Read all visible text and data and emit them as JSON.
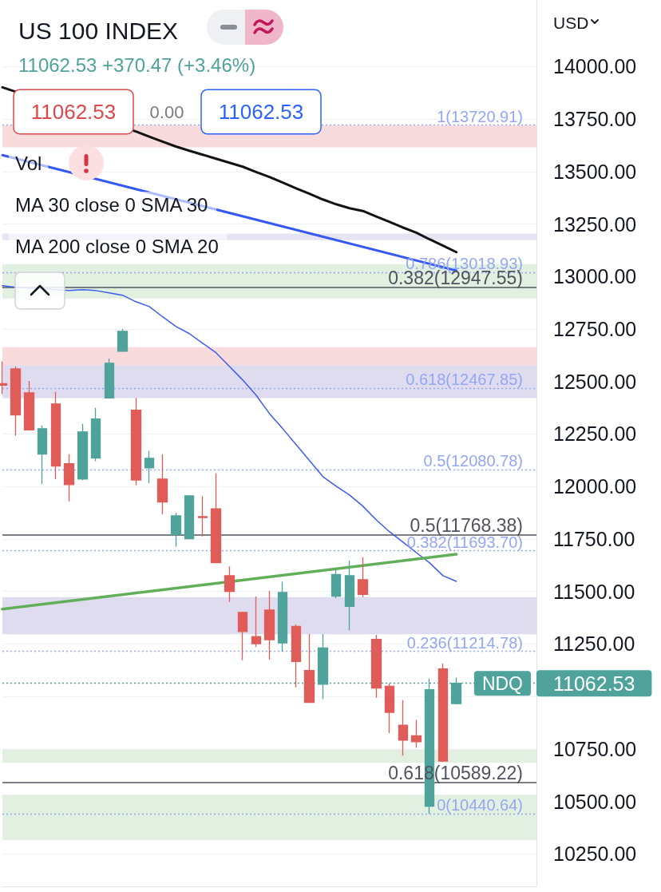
{
  "chart_data": {
    "type": "candlestick",
    "title": "US 100 INDEX",
    "subtitle": "11062.53 +370.47 (+3.46%)",
    "ylabel": "USD",
    "annotations": [
      "11062.53",
      "0.00",
      "11062.53",
      "Vol",
      "MA 30 close 0 SMA 30",
      "MA 200 close 0 SMA 20",
      {
        "text": "NDQ",
        "y": 11062.53
      }
    ],
    "categories": [
      null,
      null,
      null,
      null,
      null,
      null,
      null,
      null,
      null,
      null,
      null,
      null,
      null,
      null,
      null,
      null,
      null,
      null,
      null,
      null,
      null,
      null,
      null,
      null,
      null,
      null,
      null,
      null,
      null,
      null,
      null,
      null,
      null,
      null,
      null
    ],
    "ohlc": [
      [
        12490,
        12596,
        12440,
        12482
      ],
      [
        12560,
        12571,
        12242,
        12341
      ],
      [
        12446,
        12503,
        12269,
        12269
      ],
      [
        12154,
        12290,
        12012,
        12275
      ],
      [
        12393,
        12450,
        12035,
        12097
      ],
      [
        12108,
        12153,
        11929,
        12009
      ],
      [
        12035,
        12298,
        12029,
        12260
      ],
      [
        12135,
        12374,
        12120,
        12321
      ],
      [
        12421,
        12609,
        12421,
        12587
      ],
      [
        12644,
        12751,
        12641,
        12739
      ],
      [
        12363,
        12421,
        12005,
        12031
      ],
      [
        12089,
        12170,
        12016,
        12134
      ],
      [
        12035,
        12153,
        11868,
        11926
      ],
      [
        11771,
        11875,
        11713,
        11860
      ],
      [
        11751,
        11955,
        11751,
        11955
      ],
      [
        11856,
        11953,
        11762,
        11852
      ],
      [
        11894,
        12062,
        11637,
        11637
      ],
      [
        11575,
        11619,
        11450,
        11500
      ],
      [
        11400,
        11403,
        11172,
        11309
      ],
      [
        11285,
        11476,
        11236,
        11251
      ],
      [
        11411,
        11502,
        11175,
        11270
      ],
      [
        11255,
        11547,
        11213,
        11495
      ],
      [
        11333,
        11343,
        11043,
        11166
      ],
      [
        11123,
        11297,
        10971,
        10971
      ],
      [
        11058,
        11297,
        10987,
        11231
      ],
      [
        11477,
        11606,
        11467,
        11581
      ],
      [
        11429,
        11647,
        11315,
        11575
      ],
      [
        11556,
        11663,
        11473,
        11486
      ],
      [
        11272,
        11293,
        10994,
        11040
      ],
      [
        11048,
        11062,
        10825,
        10924
      ],
      [
        10863,
        10982,
        10718,
        10792
      ],
      [
        10812,
        10888,
        10756,
        10784
      ],
      [
        10477,
        11085,
        10441,
        11032
      ],
      [
        11131,
        11156,
        10688,
        10692
      ],
      [
        10966,
        11090,
        10962,
        11062.53
      ]
    ],
    "colors": [
      "#e05c58",
      "#e05c58",
      "#e05c58",
      "#4fa39a",
      "#e05c58",
      "#e05c58",
      "#4fa39a",
      "#4fa39a",
      "#4fa39a",
      "#4fa39a",
      "#e05c58",
      "#4fa39a",
      "#e05c58",
      "#4fa39a",
      "#4fa39a",
      "#e05c58",
      "#e05c58",
      "#e05c58",
      "#e05c58",
      "#e05c58",
      "#e05c58",
      "#4fa39a",
      "#e05c58",
      "#e05c58",
      "#4fa39a",
      "#4fa39a",
      "#4fa39a",
      "#e05c58",
      "#e05c58",
      "#e05c58",
      "#e05c58",
      "#e05c58",
      "#4fa39a",
      "#e05c58",
      "#4fa39a"
    ],
    "series": [
      {
        "type": "line",
        "color": "#131313",
        "values": [
          13901,
          null,
          null,
          null,
          null,
          null,
          null,
          null,
          null,
          null,
          13691,
          13666,
          13642,
          13619,
          13599,
          13580,
          13561,
          13542,
          13523,
          13498,
          13474,
          13447,
          13420,
          13394,
          13367,
          13344,
          13325,
          13312,
          13286,
          13260,
          13233,
          13209,
          13177,
          13147,
          13116
        ]
      },
      {
        "type": "line",
        "color": "#3d5cf0",
        "values": [
          12956,
          12949,
          null,
          null,
          null,
          12933,
          12937,
          12933,
          12922,
          12911,
          12880,
          12857,
          12808,
          12762,
          12728,
          12682,
          12637,
          12572,
          12507,
          12435,
          12347,
          12275,
          12199,
          12123,
          12047,
          12001,
          11959,
          11906,
          11841,
          11784,
          11735,
          11685,
          11636,
          11575,
          11548
        ]
      },
      {
        "type": "line",
        "color": "#3358f4",
        "values": [
          13578,
          null,
          null,
          null,
          null,
          null,
          null,
          null,
          null,
          null,
          null,
          null,
          null,
          null,
          null,
          null,
          null,
          null,
          null,
          null,
          null,
          null,
          null,
          null,
          null,
          null,
          null,
          null,
          null,
          null,
          null,
          null,
          null,
          null,
          13028
        ]
      },
      {
        "type": "line",
        "color": "#62ae59",
        "values": [
          11416,
          null,
          null,
          null,
          null,
          null,
          null,
          null,
          null,
          null,
          null,
          null,
          null,
          null,
          null,
          null,
          null,
          null,
          null,
          null,
          null,
          null,
          null,
          null,
          null,
          null,
          null,
          null,
          null,
          null,
          null,
          null,
          null,
          null,
          11677
        ]
      }
    ],
    "ylim": [
      10095,
      14317
    ],
    "yticks": [
      {
        "value": 10250,
        "label": "10250.00"
      },
      {
        "value": 10500,
        "label": "10500.00"
      },
      {
        "value": 10750,
        "label": "10750.00"
      },
      {
        "value": 11000,
        "label": null
      },
      {
        "value": 11250,
        "label": "11250.00"
      },
      {
        "value": 11500,
        "label": "11500.00"
      },
      {
        "value": 11750,
        "label": "11750.00"
      },
      {
        "value": 12000,
        "label": "12000.00"
      },
      {
        "value": 12250,
        "label": "12250.00"
      },
      {
        "value": 12500,
        "label": "12500.00"
      },
      {
        "value": 12750,
        "label": "12750.00"
      },
      {
        "value": 13000,
        "label": "13000.00"
      },
      {
        "value": 13250,
        "label": "13250.00"
      },
      {
        "value": 13500,
        "label": "13500.00"
      },
      {
        "value": 13750,
        "label": "13750.00"
      },
      {
        "value": 14000,
        "label": "14000.00"
      }
    ],
    "grid": "y",
    "tick_labels": "y",
    "ref_lines": [
      {
        "axis": "y",
        "value": 13720.91,
        "label": "1(13720.91)",
        "color": "#94a7f5",
        "line_style": "dotted"
      },
      {
        "axis": "y",
        "value": 13018.93,
        "label": "0.786(13018.93)",
        "color": "#94a7f5",
        "line_style": "dotted"
      },
      {
        "axis": "y",
        "value": 12947.55,
        "label": "0.382(12947.55)",
        "color": "#50535e",
        "line_style": "solid"
      },
      {
        "axis": "y",
        "value": 12467.85,
        "label": "0.618(12467.85)",
        "color": "#94a7f5",
        "line_style": "dotted"
      },
      {
        "axis": "y",
        "value": 12080.78,
        "label": "0.5(12080.78)",
        "color": "#94a7f5",
        "line_style": "dotted"
      },
      {
        "axis": "y",
        "value": 11768.38,
        "label": "0.5(11768.38)",
        "color": "#50535e",
        "line_style": "solid"
      },
      {
        "axis": "y",
        "value": 11693.7,
        "label": "0.382(11693.70)",
        "color": "#94a7f5",
        "line_style": "dotted"
      },
      {
        "axis": "y",
        "value": 11214.78,
        "label": "0.236(11214.78)",
        "color": "#94a7f5",
        "line_style": "dotted"
      },
      {
        "axis": "y",
        "value": 11062.53,
        "color": "#4fa39a",
        "line_style": "dotted"
      },
      {
        "axis": "y",
        "value": 10589.22,
        "label": "0.618(10589.22)",
        "color": "#50535e",
        "line_style": "solid"
      },
      {
        "axis": "y",
        "value": 10440.64,
        "label": "0(10440.64)",
        "color": "#94a7f5",
        "line_style": "dotted"
      }
    ],
    "bands": [
      {
        "axis": "y",
        "from": 13615,
        "to": 13720,
        "color": "#f8dcdd"
      },
      {
        "axis": "y",
        "from": 13173,
        "to": 13204,
        "color": "#e6e3f3"
      },
      {
        "axis": "y",
        "from": 12895,
        "to": 13059,
        "color": "#e1f0e0"
      },
      {
        "axis": "y",
        "from": 12421,
        "to": 12641,
        "color": "#e0dcf0"
      },
      {
        "axis": "y",
        "from": 12577,
        "to": 12663,
        "color": "#f8dcdd"
      },
      {
        "axis": "y",
        "from": 11296,
        "to": 11473,
        "color": "#e0dcf0"
      },
      {
        "axis": "y",
        "from": 10684,
        "to": 10746,
        "color": "#e1f0e0"
      },
      {
        "axis": "y",
        "from": 10317,
        "to": 10531,
        "color": "#e1f0e0"
      }
    ]
  }
}
